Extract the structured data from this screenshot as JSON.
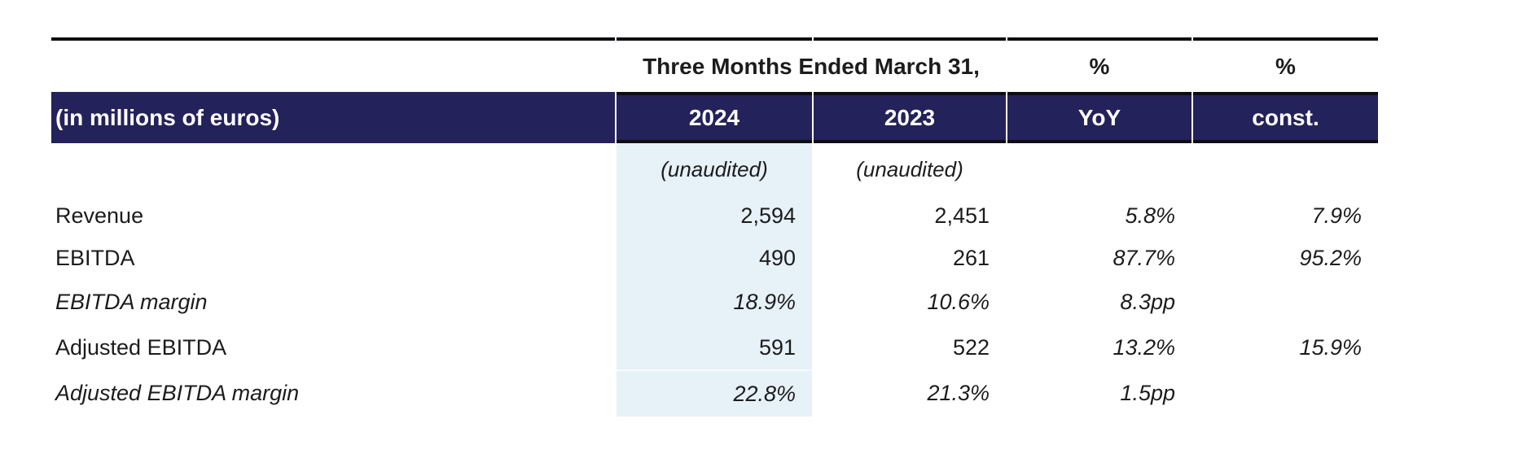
{
  "table": {
    "top_header": {
      "period": "Three Months Ended March 31,",
      "pct_yoy": "%",
      "pct_const": "%"
    },
    "column_header": {
      "units": "(in millions of euros)",
      "y2024": "2024",
      "y2023": "2023",
      "yoy": "YoY",
      "const": "const."
    },
    "subheader": {
      "unaudited_2024": "(unaudited)",
      "unaudited_2023": "(unaudited)"
    },
    "rows": [
      {
        "label": "Revenue",
        "v2024": "2,594",
        "v2023": "2,451",
        "yoy": "5.8%",
        "const": "7.9%"
      },
      {
        "label": "EBITDA",
        "v2024": "490",
        "v2023": "261",
        "yoy": "87.7%",
        "const": "95.2%"
      },
      {
        "label": "EBITDA margin",
        "v2024": "18.9%",
        "v2023": "10.6%",
        "yoy": "8.3pp",
        "const": ""
      },
      {
        "label": "Adjusted EBITDA",
        "v2024": "591",
        "v2023": "522",
        "yoy": "13.2%",
        "const": "15.9%"
      },
      {
        "label": "Adjusted EBITDA margin",
        "v2024": "22.8%",
        "v2023": "21.3%",
        "yoy": "1.5pp",
        "const": ""
      }
    ],
    "colors": {
      "header_navy": "#24225a",
      "highlight_blue": "#e6f1f8",
      "rule_black": "#0d0d12",
      "text": "#1c1c1c"
    }
  }
}
